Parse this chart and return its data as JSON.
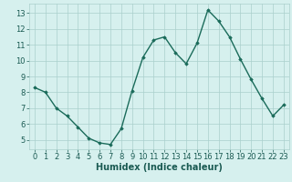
{
  "x": [
    0,
    1,
    2,
    3,
    4,
    5,
    6,
    7,
    8,
    9,
    10,
    11,
    12,
    13,
    14,
    15,
    16,
    17,
    18,
    19,
    20,
    21,
    22,
    23
  ],
  "y": [
    8.3,
    8.0,
    7.0,
    6.5,
    5.8,
    5.1,
    4.8,
    4.7,
    5.7,
    8.1,
    10.2,
    11.3,
    11.5,
    10.5,
    9.8,
    11.1,
    13.2,
    12.5,
    11.5,
    10.1,
    8.8,
    7.6,
    6.5,
    7.2
  ],
  "xlabel": "Humidex (Indice chaleur)",
  "ylim": [
    4.4,
    13.6
  ],
  "xlim": [
    -0.5,
    23.5
  ],
  "yticks": [
    5,
    6,
    7,
    8,
    9,
    10,
    11,
    12,
    13
  ],
  "xticks": [
    0,
    1,
    2,
    3,
    4,
    5,
    6,
    7,
    8,
    9,
    10,
    11,
    12,
    13,
    14,
    15,
    16,
    17,
    18,
    19,
    20,
    21,
    22,
    23
  ],
  "line_color": "#1a6b5a",
  "marker": "D",
  "marker_size": 1.8,
  "bg_color": "#d6f0ee",
  "grid_color": "#aacfcc",
  "tick_color": "#1a5a52",
  "xlabel_fontsize": 7,
  "tick_fontsize": 6,
  "linewidth": 1.0
}
